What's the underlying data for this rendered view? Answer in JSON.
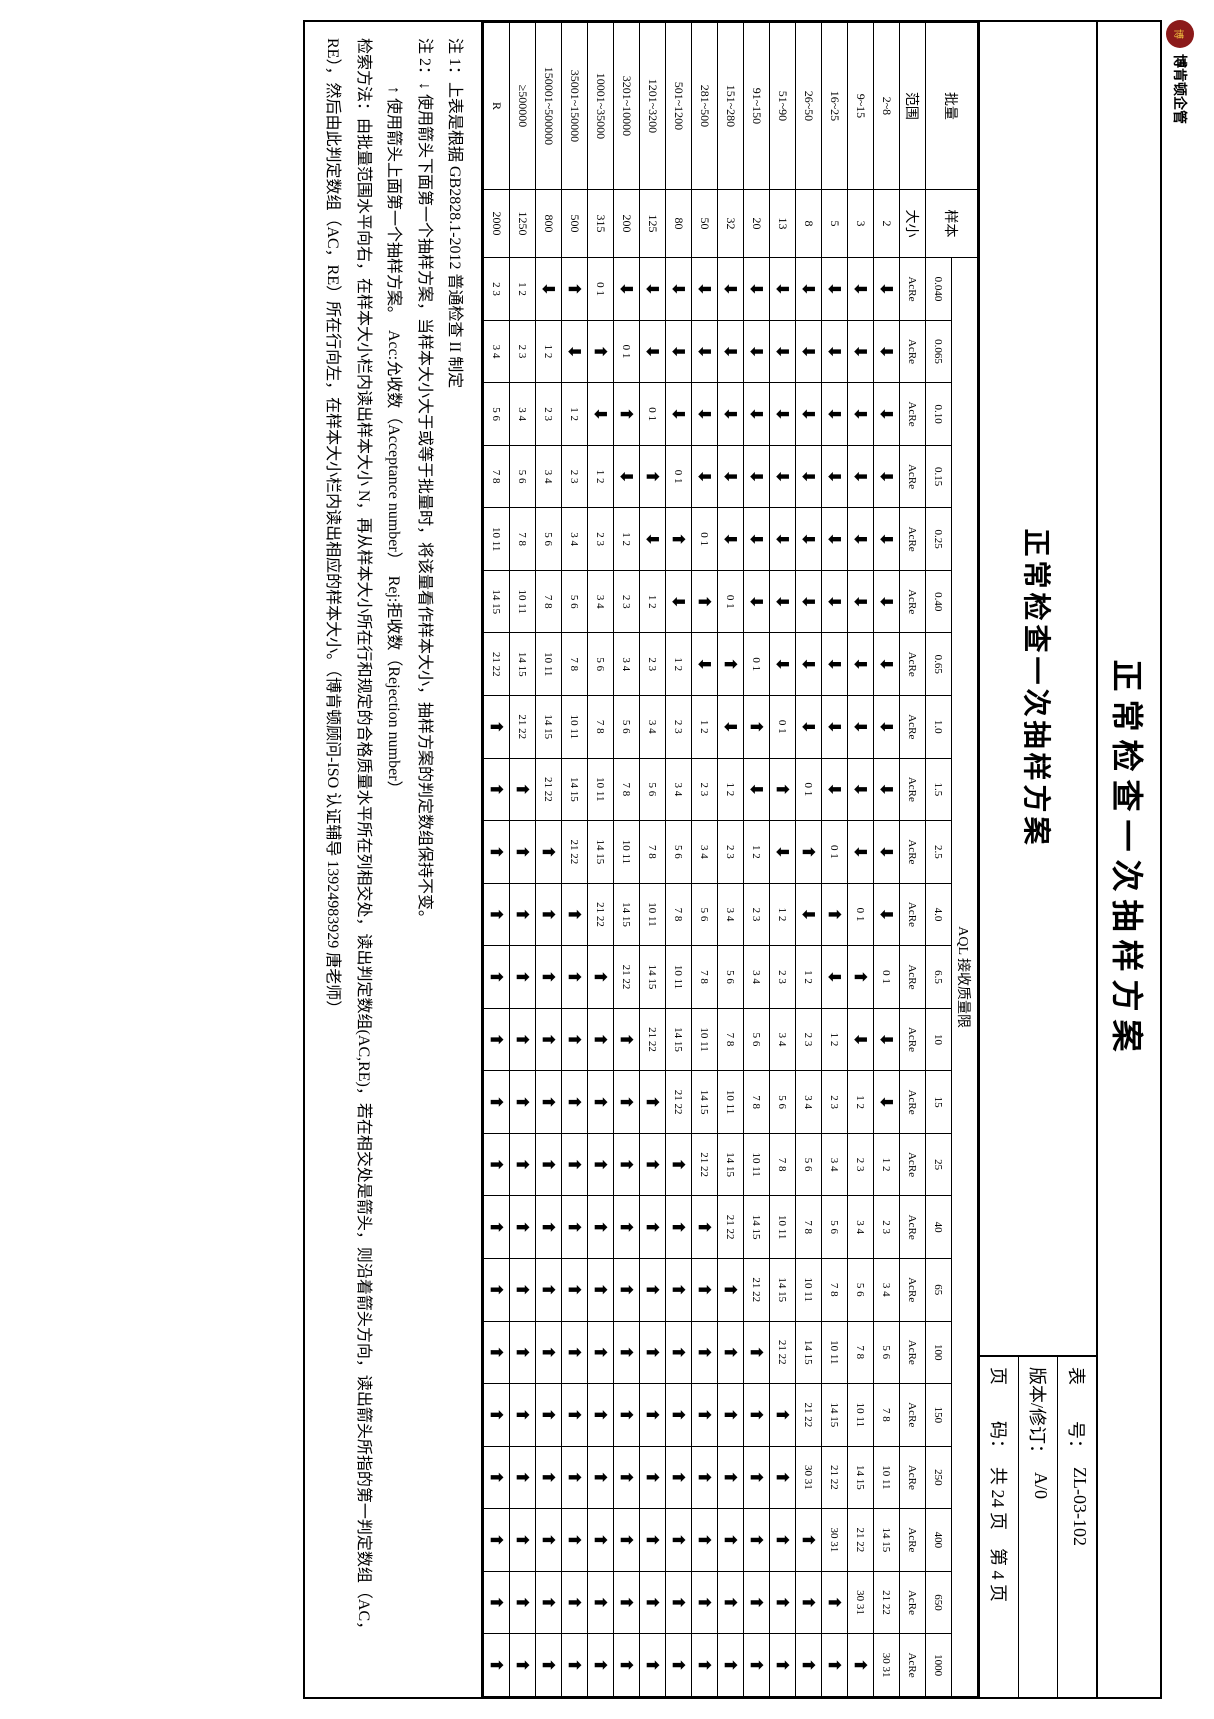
{
  "logo": {
    "text": "博肯顿企管"
  },
  "main_title": "正常检查一次抽样方案",
  "header": {
    "subtitle": "正常检查一次抽样方案",
    "table_no_label": "表　　号：",
    "table_no": "ZL-03-102",
    "version_label": "版本/修订：",
    "version": "A/0",
    "page_label": "页　　码：",
    "page": "共 24 页　第 4 页"
  },
  "columns": {
    "batch": "批量",
    "range": "范围",
    "sample": "样本",
    "size": "大小",
    "aql_title": "AQL 接收质量限",
    "aql_levels": [
      "0.040",
      "0.065",
      "0.10",
      "0.15",
      "0.25",
      "0.40",
      "0.65",
      "1.0",
      "1.5",
      "2.5",
      "4.0",
      "6.5",
      "10",
      "15",
      "25",
      "40",
      "65",
      "100",
      "150",
      "250",
      "400",
      "650",
      "1000"
    ],
    "acre": "AcRe"
  },
  "rows": [
    {
      "range": "2~8",
      "n": "2",
      "cells": [
        "↓",
        "↓",
        "↓",
        "↓",
        "↓",
        "↓",
        "↓",
        "↓",
        "↓",
        "↓",
        "↓",
        "0 1",
        "↓",
        "↓",
        "1 2",
        "2 3",
        "3 4",
        "5 6",
        "7 8",
        "10 11",
        "14 15",
        "21 22",
        "30 31"
      ]
    },
    {
      "range": "9~15",
      "n": "3",
      "cells": [
        "↓",
        "↓",
        "↓",
        "↓",
        "↓",
        "↓",
        "↓",
        "↓",
        "↓",
        "↓",
        "0 1",
        "↑",
        "↓",
        "1 2",
        "2 3",
        "3 4",
        "5 6",
        "7 8",
        "10 11",
        "14 15",
        "21 22",
        "30 31",
        "↑"
      ]
    },
    {
      "range": "16~25",
      "n": "5",
      "cells": [
        "↓",
        "↓",
        "↓",
        "↓",
        "↓",
        "↓",
        "↓",
        "↓",
        "↓",
        "0 1",
        "↑",
        "↓",
        "1 2",
        "2 3",
        "3 4",
        "5 6",
        "7 8",
        "10 11",
        "14 15",
        "21 22",
        "30 31",
        "↑",
        "↑"
      ]
    },
    {
      "range": "26~50",
      "n": "8",
      "cells": [
        "↓",
        "↓",
        "↓",
        "↓",
        "↓",
        "↓",
        "↓",
        "↓",
        "0 1",
        "↑",
        "↓",
        "1 2",
        "2 3",
        "3 4",
        "5 6",
        "7 8",
        "10 11",
        "14 15",
        "21 22",
        "30 31",
        "↑",
        "↑",
        "↑"
      ]
    },
    {
      "range": "51~90",
      "n": "13",
      "cells": [
        "↓",
        "↓",
        "↓",
        "↓",
        "↓",
        "↓",
        "↓",
        "0 1",
        "↑",
        "↓",
        "1 2",
        "2 3",
        "3 4",
        "5 6",
        "7 8",
        "10 11",
        "14 15",
        "21 22",
        "↑",
        "↑",
        "↑",
        "↑",
        "↑"
      ]
    },
    {
      "range": "91~150",
      "n": "20",
      "cells": [
        "↓",
        "↓",
        "↓",
        "↓",
        "↓",
        "↓",
        "0 1",
        "↑",
        "↓",
        "1 2",
        "2 3",
        "3 4",
        "5 6",
        "7 8",
        "10 11",
        "14 15",
        "21 22",
        "↑",
        "↑",
        "↑",
        "↑",
        "↑",
        "↑"
      ]
    },
    {
      "range": "151~280",
      "n": "32",
      "cells": [
        "↓",
        "↓",
        "↓",
        "↓",
        "↓",
        "0 1",
        "↑",
        "↓",
        "1 2",
        "2 3",
        "3 4",
        "5 6",
        "7 8",
        "10 11",
        "14 15",
        "21 22",
        "↑",
        "↑",
        "↑",
        "↑",
        "↑",
        "↑",
        "↑"
      ]
    },
    {
      "range": "281~500",
      "n": "50",
      "cells": [
        "↓",
        "↓",
        "↓",
        "↓",
        "0 1",
        "↑",
        "↓",
        "1 2",
        "2 3",
        "3 4",
        "5 6",
        "7 8",
        "10 11",
        "14 15",
        "21 22",
        "↑",
        "↑",
        "↑",
        "↑",
        "↑",
        "↑",
        "↑",
        "↑"
      ]
    },
    {
      "range": "501~1200",
      "n": "80",
      "cells": [
        "↓",
        "↓",
        "↓",
        "0 1",
        "↑",
        "↓",
        "1 2",
        "2 3",
        "3 4",
        "5 6",
        "7 8",
        "10 11",
        "14 15",
        "21 22",
        "↑",
        "↑",
        "↑",
        "↑",
        "↑",
        "↑",
        "↑",
        "↑",
        "↑"
      ]
    },
    {
      "range": "1201~3200",
      "n": "125",
      "cells": [
        "↓",
        "↓",
        "0 1",
        "↑",
        "↓",
        "1 2",
        "2 3",
        "3 4",
        "5 6",
        "7 8",
        "10 11",
        "14 15",
        "21 22",
        "↑",
        "↑",
        "↑",
        "↑",
        "↑",
        "↑",
        "↑",
        "↑",
        "↑",
        "↑"
      ]
    },
    {
      "range": "3201~10000",
      "n": "200",
      "cells": [
        "↓",
        "0 1",
        "↑",
        "↓",
        "1 2",
        "2 3",
        "3 4",
        "5 6",
        "7 8",
        "10 11",
        "14 15",
        "21 22",
        "↑",
        "↑",
        "↑",
        "↑",
        "↑",
        "↑",
        "↑",
        "↑",
        "↑",
        "↑",
        "↑"
      ]
    },
    {
      "range": "10001~35000",
      "n": "315",
      "cells": [
        "0 1",
        "↑",
        "↓",
        "1 2",
        "2 3",
        "3 4",
        "5 6",
        "7 8",
        "10 11",
        "14 15",
        "21 22",
        "↑",
        "↑",
        "↑",
        "↑",
        "↑",
        "↑",
        "↑",
        "↑",
        "↑",
        "↑",
        "↑",
        "↑"
      ]
    },
    {
      "range": "35001~150000",
      "n": "500",
      "cells": [
        "↑",
        "↓",
        "1 2",
        "2 3",
        "3 4",
        "5 6",
        "7 8",
        "10 11",
        "14 15",
        "21 22",
        "↑",
        "↑",
        "↑",
        "↑",
        "↑",
        "↑",
        "↑",
        "↑",
        "↑",
        "↑",
        "↑",
        "↑",
        "↑"
      ]
    },
    {
      "range": "150001~500000",
      "n": "800",
      "cells": [
        "↓",
        "1 2",
        "2 3",
        "3 4",
        "5 6",
        "7 8",
        "10 11",
        "14 15",
        "21 22",
        "↑",
        "↑",
        "↑",
        "↑",
        "↑",
        "↑",
        "↑",
        "↑",
        "↑",
        "↑",
        "↑",
        "↑",
        "↑",
        "↑"
      ]
    },
    {
      "range": "≥500000",
      "n": "1250",
      "cells": [
        "1 2",
        "2 3",
        "3 4",
        "5 6",
        "7 8",
        "10 11",
        "14 15",
        "21 22",
        "↑",
        "↑",
        "↑",
        "↑",
        "↑",
        "↑",
        "↑",
        "↑",
        "↑",
        "↑",
        "↑",
        "↑",
        "↑",
        "↑",
        "↑"
      ]
    },
    {
      "range": "R",
      "n": "2000",
      "cells": [
        "2 3",
        "3 4",
        "5 6",
        "7 8",
        "10 11",
        "14 15",
        "21 22",
        "↑",
        "↑",
        "↑",
        "↑",
        "↑",
        "↑",
        "↑",
        "↑",
        "↑",
        "↑",
        "↑",
        "↑",
        "↑",
        "↑",
        "↑",
        "↑"
      ]
    }
  ],
  "notes": {
    "n1": "注 1：上表是根据 GB2828.1-2012 普通检查 II 制定",
    "n2": "注 2：↓ 使用箭头下面第一个抽样方案，当样本大小大于或等于批量时，将该量看作样本大小，抽样方案的判定数组保持不变。",
    "n3": "　　　↑ 使用箭头上面第一个抽样方案。　Acc:允收数（Acceptance number）　Rej:拒收数（Rejection number）",
    "n4": "检索方法：由批量范围水平向右，在样本大小栏内读出样本大小 N，再从样本大小所在行和规定的合格质量水平所在列相交处，读出判定数组(AC,RE)，若在相交处是箭头，则沿着箭头方向，读出箭头所指的第一判定数组（AC，RE），然后由此判定数组（AC，RE）所在行向左，在样本大小栏内读出相应的样本大小。（博肯顿顾问-ISO 认证辅导 13924983929 唐老师）"
  }
}
